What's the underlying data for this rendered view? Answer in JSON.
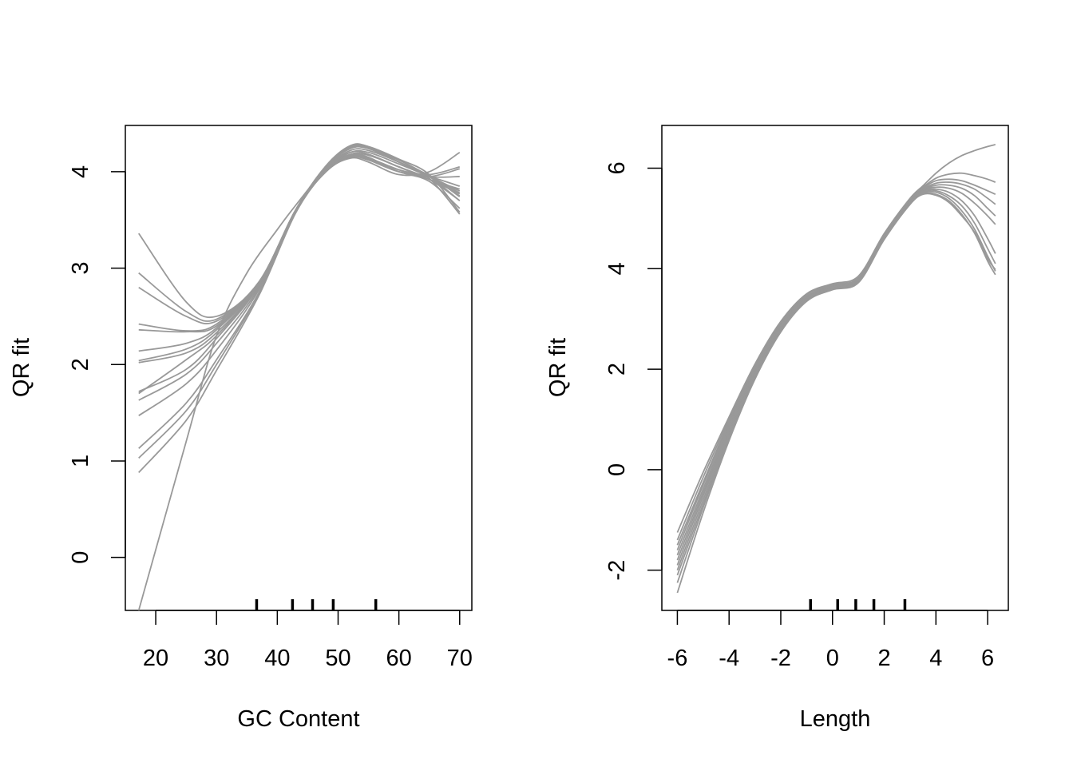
{
  "colors": {
    "curve": "#999999",
    "axis": "#000000",
    "rug": "#000000",
    "background": "#ffffff"
  },
  "chart_data": [
    {
      "type": "line",
      "title": "",
      "xlabel": "GC Content",
      "ylabel": "QR fit",
      "xlim": [
        15,
        72
      ],
      "ylim": [
        -0.55,
        4.48
      ],
      "xticks": [
        20,
        30,
        40,
        50,
        60,
        70
      ],
      "xtick_labels": [
        "20",
        "30",
        "40",
        "50",
        "60",
        "70"
      ],
      "yticks": [
        0,
        1,
        2,
        3,
        4
      ],
      "ytick_labels": [
        "0",
        "1",
        "2",
        "3",
        "4"
      ],
      "rug": [
        36.6,
        42.5,
        45.8,
        49.2,
        56.2
      ],
      "grid": false,
      "legend": "none",
      "series": [
        {
          "x": [
            17.2,
            25,
            30,
            37,
            43,
            48,
            52,
            55,
            60,
            65,
            70
          ],
          "y": [
            3.36,
            2.65,
            2.5,
            2.85,
            3.6,
            4.02,
            4.18,
            4.17,
            4.05,
            3.92,
            3.82
          ]
        },
        {
          "x": [
            17.2,
            25,
            30,
            37,
            43,
            48,
            52,
            55,
            60,
            65,
            70
          ],
          "y": [
            2.95,
            2.55,
            2.47,
            2.86,
            3.6,
            4.03,
            4.2,
            4.2,
            4.08,
            3.95,
            3.8
          ]
        },
        {
          "x": [
            17.2,
            25,
            30,
            37,
            43,
            48,
            52,
            55,
            60,
            65,
            70
          ],
          "y": [
            2.8,
            2.5,
            2.45,
            2.85,
            3.6,
            4.04,
            4.22,
            4.22,
            4.1,
            3.95,
            3.75
          ]
        },
        {
          "x": [
            17.2,
            25,
            30,
            37,
            43,
            48,
            52,
            55,
            60,
            65,
            70
          ],
          "y": [
            2.42,
            2.35,
            2.42,
            2.85,
            3.6,
            4.05,
            4.24,
            4.24,
            4.12,
            3.95,
            3.7
          ]
        },
        {
          "x": [
            17.2,
            25,
            30,
            37,
            43,
            48,
            52,
            55,
            60,
            65,
            70
          ],
          "y": [
            2.36,
            2.34,
            2.4,
            2.85,
            3.6,
            4.05,
            4.25,
            4.25,
            4.1,
            3.95,
            3.78
          ]
        },
        {
          "x": [
            17.2,
            25,
            30,
            37,
            43,
            48,
            52,
            55,
            60,
            65,
            70
          ],
          "y": [
            2.14,
            2.22,
            2.38,
            2.85,
            3.6,
            4.06,
            4.26,
            4.26,
            4.13,
            3.97,
            3.58
          ]
        },
        {
          "x": [
            17.2,
            25,
            30,
            37,
            43,
            48,
            52,
            55,
            60,
            65,
            70
          ],
          "y": [
            2.04,
            2.16,
            2.36,
            2.84,
            3.6,
            4.06,
            4.27,
            4.26,
            4.1,
            3.93,
            3.56
          ]
        },
        {
          "x": [
            17.2,
            25,
            30,
            37,
            43,
            48,
            52,
            55,
            60,
            65,
            70
          ],
          "y": [
            2.02,
            2.12,
            2.33,
            2.83,
            3.6,
            4.05,
            4.24,
            4.24,
            4.1,
            3.96,
            3.74
          ]
        },
        {
          "x": [
            17.2,
            25,
            30,
            37,
            43,
            48,
            52,
            55,
            60,
            65,
            70
          ],
          "y": [
            1.72,
            1.95,
            2.27,
            2.82,
            3.6,
            4.04,
            4.2,
            4.18,
            4.05,
            3.95,
            3.95
          ]
        },
        {
          "x": [
            17.2,
            25,
            30,
            37,
            43,
            48,
            52,
            55,
            60,
            65,
            70
          ],
          "y": [
            1.7,
            2.05,
            2.3,
            2.83,
            3.6,
            4.03,
            4.18,
            4.15,
            4.0,
            3.95,
            4.03
          ]
        },
        {
          "x": [
            17.2,
            25,
            30,
            37,
            43,
            48,
            52,
            55,
            60,
            65,
            70
          ],
          "y": [
            1.63,
            1.9,
            2.22,
            2.8,
            3.6,
            4.02,
            4.16,
            4.14,
            4.02,
            3.95,
            3.85
          ]
        },
        {
          "x": [
            17.2,
            25,
            30,
            37,
            43,
            48,
            52,
            55,
            60,
            65,
            70
          ],
          "y": [
            1.47,
            1.8,
            2.15,
            2.78,
            3.6,
            4.0,
            4.15,
            4.12,
            4.0,
            3.97,
            4.05
          ]
        },
        {
          "x": [
            17.2,
            25,
            30,
            37,
            43,
            48,
            52,
            55,
            60,
            65,
            70
          ],
          "y": [
            1.13,
            1.6,
            2.05,
            2.75,
            3.58,
            4.0,
            4.14,
            4.1,
            3.97,
            4.0,
            4.2
          ]
        },
        {
          "x": [
            17.2,
            25,
            30,
            37,
            43,
            48,
            52,
            55,
            60,
            65,
            70
          ],
          "y": [
            1.03,
            1.52,
            2.0,
            2.74,
            3.58,
            4.02,
            4.17,
            4.14,
            4.02,
            3.92,
            3.7
          ]
        },
        {
          "x": [
            17.2,
            25,
            30,
            37,
            43,
            48,
            52,
            55,
            60,
            65,
            70
          ],
          "y": [
            0.88,
            1.42,
            1.94,
            2.72,
            3.57,
            4.01,
            4.16,
            4.13,
            4.0,
            3.9,
            3.62
          ]
        },
        {
          "x": [
            17.2,
            25,
            30,
            35,
            40,
            43,
            48,
            52,
            55,
            60,
            65,
            70
          ],
          "y": [
            -0.55,
            1.2,
            2.3,
            2.95,
            3.4,
            3.65,
            4.03,
            4.2,
            4.18,
            4.05,
            3.92,
            3.77
          ]
        }
      ]
    },
    {
      "type": "line",
      "title": "",
      "xlabel": "Length",
      "ylabel": "QR fit",
      "xlim": [
        -6.6,
        6.8
      ],
      "ylim": [
        -2.8,
        6.85
      ],
      "xticks": [
        -6,
        -4,
        -2,
        0,
        2,
        4,
        6
      ],
      "xtick_labels": [
        "-6",
        "-4",
        "-2",
        "0",
        "2",
        "4",
        "6"
      ],
      "yticks": [
        -2,
        0,
        2,
        4,
        6
      ],
      "ytick_labels": [
        "-2",
        "0",
        "2",
        "4",
        "6"
      ],
      "rug": [
        -0.85,
        0.2,
        0.9,
        1.6,
        2.8
      ],
      "grid": false,
      "legend": "none",
      "series": [
        {
          "x": [
            -6,
            -5,
            -4,
            -3,
            -2,
            -1,
            0,
            1,
            2,
            3,
            3.5,
            4,
            4.5,
            5,
            5.5,
            6,
            6.3
          ],
          "y": [
            -1.25,
            -0.05,
            1.05,
            2.1,
            2.95,
            3.5,
            3.7,
            3.85,
            4.7,
            5.4,
            5.65,
            5.9,
            6.1,
            6.25,
            6.35,
            6.43,
            6.47
          ]
        },
        {
          "x": [
            -6,
            -5,
            -4,
            -3,
            -2,
            -1,
            0,
            1,
            2,
            3,
            3.5,
            4,
            4.5,
            5,
            5.5,
            6,
            6.3
          ],
          "y": [
            -1.4,
            -0.15,
            1.0,
            2.05,
            2.92,
            3.48,
            3.68,
            3.82,
            4.68,
            5.38,
            5.62,
            5.8,
            5.88,
            5.9,
            5.85,
            5.78,
            5.72
          ]
        },
        {
          "x": [
            -6,
            -5,
            -4,
            -3,
            -2,
            -1,
            0,
            1,
            2,
            3,
            3.5,
            4,
            4.5,
            5,
            5.5,
            6,
            6.3
          ],
          "y": [
            -1.5,
            -0.25,
            0.95,
            2.0,
            2.9,
            3.45,
            3.66,
            3.8,
            4.66,
            5.36,
            5.6,
            5.75,
            5.78,
            5.75,
            5.66,
            5.55,
            5.48
          ]
        },
        {
          "x": [
            -6,
            -5,
            -4,
            -3,
            -2,
            -1,
            0,
            1,
            2,
            3,
            3.5,
            4,
            4.5,
            5,
            5.5,
            6,
            6.3
          ],
          "y": [
            -1.6,
            -0.3,
            0.9,
            1.98,
            2.88,
            3.44,
            3.65,
            3.79,
            4.65,
            5.35,
            5.58,
            5.7,
            5.72,
            5.68,
            5.58,
            5.4,
            5.28
          ]
        },
        {
          "x": [
            -6,
            -5,
            -4,
            -3,
            -2,
            -1,
            0,
            1,
            2,
            3,
            3.5,
            4,
            4.5,
            5,
            5.5,
            6,
            6.3
          ],
          "y": [
            -1.7,
            -0.38,
            0.85,
            1.95,
            2.86,
            3.42,
            3.64,
            3.78,
            4.64,
            5.34,
            5.57,
            5.66,
            5.66,
            5.6,
            5.45,
            5.2,
            5.05
          ]
        },
        {
          "x": [
            -6,
            -5,
            -4,
            -3,
            -2,
            -1,
            0,
            1,
            2,
            3,
            3.5,
            4,
            4.5,
            5,
            5.5,
            6,
            6.3
          ],
          "y": [
            -1.8,
            -0.45,
            0.8,
            1.92,
            2.84,
            3.41,
            3.63,
            3.77,
            4.63,
            5.33,
            5.56,
            5.62,
            5.6,
            5.5,
            5.3,
            5.05,
            4.88
          ]
        },
        {
          "x": [
            -6,
            -5,
            -4,
            -3,
            -2,
            -1,
            0,
            1,
            2,
            3,
            3.5,
            4,
            4.5,
            5,
            5.5,
            6,
            6.3
          ],
          "y": [
            -1.9,
            -0.52,
            0.76,
            1.9,
            2.82,
            3.4,
            3.62,
            3.76,
            4.62,
            5.32,
            5.55,
            5.58,
            5.52,
            5.35,
            5.05,
            4.6,
            4.3
          ]
        },
        {
          "x": [
            -6,
            -5,
            -4,
            -3,
            -2,
            -1,
            0,
            1,
            2,
            3,
            3.5,
            4,
            4.5,
            5,
            5.5,
            6,
            6.3
          ],
          "y": [
            -2.0,
            -0.6,
            0.72,
            1.88,
            2.8,
            3.39,
            3.61,
            3.75,
            4.61,
            5.31,
            5.54,
            5.55,
            5.45,
            5.25,
            4.9,
            4.4,
            4.1
          ]
        },
        {
          "x": [
            -6,
            -5,
            -4,
            -3,
            -2,
            -1,
            0,
            1,
            2,
            3,
            3.5,
            4,
            4.5,
            5,
            5.5,
            6,
            6.3
          ],
          "y": [
            -2.1,
            -0.68,
            0.68,
            1.85,
            2.78,
            3.37,
            3.6,
            3.74,
            4.6,
            5.3,
            5.52,
            5.52,
            5.4,
            5.15,
            4.78,
            4.25,
            3.95
          ]
        },
        {
          "x": [
            -6,
            -5,
            -4,
            -3,
            -2,
            -1,
            0,
            1,
            2,
            3,
            3.5,
            4,
            4.5,
            5,
            5.5,
            6,
            6.3
          ],
          "y": [
            -2.25,
            -0.75,
            0.63,
            1.82,
            2.76,
            3.36,
            3.59,
            3.73,
            4.59,
            5.29,
            5.5,
            5.48,
            5.35,
            5.08,
            4.7,
            4.15,
            3.88
          ]
        },
        {
          "x": [
            -6,
            -5,
            -4,
            -3,
            -2,
            -1,
            0,
            1,
            2,
            3,
            3.5,
            4,
            4.5,
            5,
            5.5,
            6,
            6.3
          ],
          "y": [
            -2.45,
            -0.85,
            0.58,
            1.8,
            2.74,
            3.35,
            3.58,
            3.72,
            4.58,
            5.28,
            5.48,
            5.46,
            5.32,
            5.05,
            4.72,
            4.2,
            3.98
          ]
        }
      ]
    }
  ]
}
